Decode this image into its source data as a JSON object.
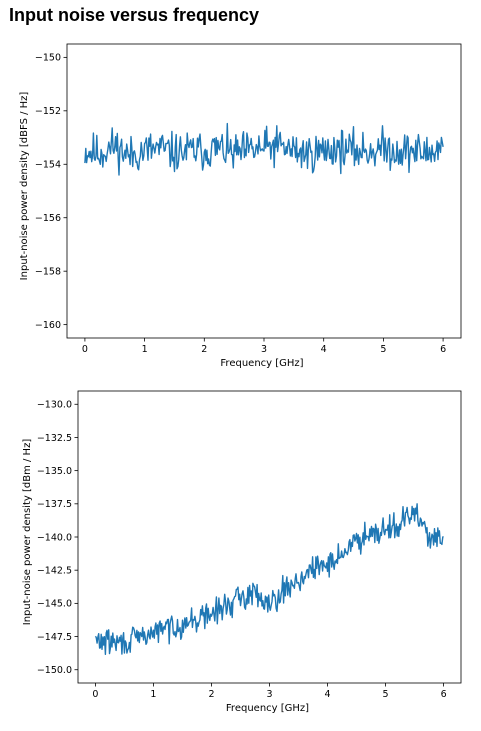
{
  "page": {
    "title": "Input noise versus frequency"
  },
  "chart_data": [
    {
      "type": "line",
      "title": "",
      "xlabel": "Frequency [GHz]",
      "ylabel": "Input-noise power density [dBFS / Hz]",
      "xlim": [
        -0.3,
        6.3
      ],
      "ylim": [
        -160.5,
        -149.5
      ],
      "xticks": [
        0,
        1,
        2,
        3,
        4,
        5,
        6
      ],
      "yticks": [
        -150,
        -152,
        -154,
        -156,
        -158,
        -160
      ],
      "ytick_labels": [
        "−150",
        "−152",
        "−154",
        "−156",
        "−158",
        "−160"
      ],
      "grid": false,
      "line_color": "#1f77b4",
      "series": [
        {
          "x": [
            0,
            0.25,
            0.5,
            0.75,
            1,
            1.25,
            1.5,
            1.75,
            2,
            2.25,
            2.5,
            2.75,
            3,
            3.25,
            3.5,
            3.75,
            4,
            4.25,
            4.5,
            4.75,
            5,
            5.25,
            5.5,
            5.75,
            6
          ],
          "y": [
            -153.5,
            -153.6,
            -153.3,
            -153.7,
            -153.5,
            -153.4,
            -153.6,
            -153.5,
            -153.5,
            -153.4,
            -153.6,
            -153.5,
            -153.4,
            -153.3,
            -153.5,
            -153.6,
            -153.5,
            -153.4,
            -153.5,
            -153.5,
            -153.4,
            -153.5,
            -153.5,
            -153.6,
            -153.3
          ],
          "noise": 0.45
        }
      ]
    },
    {
      "type": "line",
      "title": "",
      "xlabel": "Frequency [GHz]",
      "ylabel": "Input-noise power density [dBm / Hz]",
      "xlim": [
        -0.3,
        6.3
      ],
      "ylim": [
        -151.0,
        -129.0
      ],
      "xticks": [
        0,
        1,
        2,
        3,
        4,
        5,
        6
      ],
      "yticks": [
        -130.0,
        -132.5,
        -135.0,
        -137.5,
        -140.0,
        -142.5,
        -145.0,
        -147.5,
        -150.0
      ],
      "ytick_labels": [
        "−130.0",
        "−132.5",
        "−135.0",
        "−137.5",
        "−140.0",
        "−142.5",
        "−145.0",
        "−147.5",
        "−150.0"
      ],
      "grid": false,
      "line_color": "#1f77b4",
      "series": [
        {
          "x": [
            0,
            0.25,
            0.5,
            0.75,
            1,
            1.25,
            1.5,
            1.75,
            2,
            2.25,
            2.5,
            2.75,
            3,
            3.25,
            3.5,
            3.75,
            4,
            4.25,
            4.5,
            4.75,
            5,
            5.25,
            5.5,
            5.75,
            6
          ],
          "y": [
            -147.8,
            -147.9,
            -148.0,
            -147.6,
            -147.2,
            -146.8,
            -146.6,
            -146.2,
            -145.8,
            -145.2,
            -144.6,
            -144.2,
            -144.9,
            -144.0,
            -143.2,
            -142.5,
            -142.0,
            -141.3,
            -140.3,
            -139.5,
            -139.4,
            -139.0,
            -138.2,
            -139.8,
            -140.6
          ],
          "noise": 0.6
        }
      ]
    }
  ]
}
